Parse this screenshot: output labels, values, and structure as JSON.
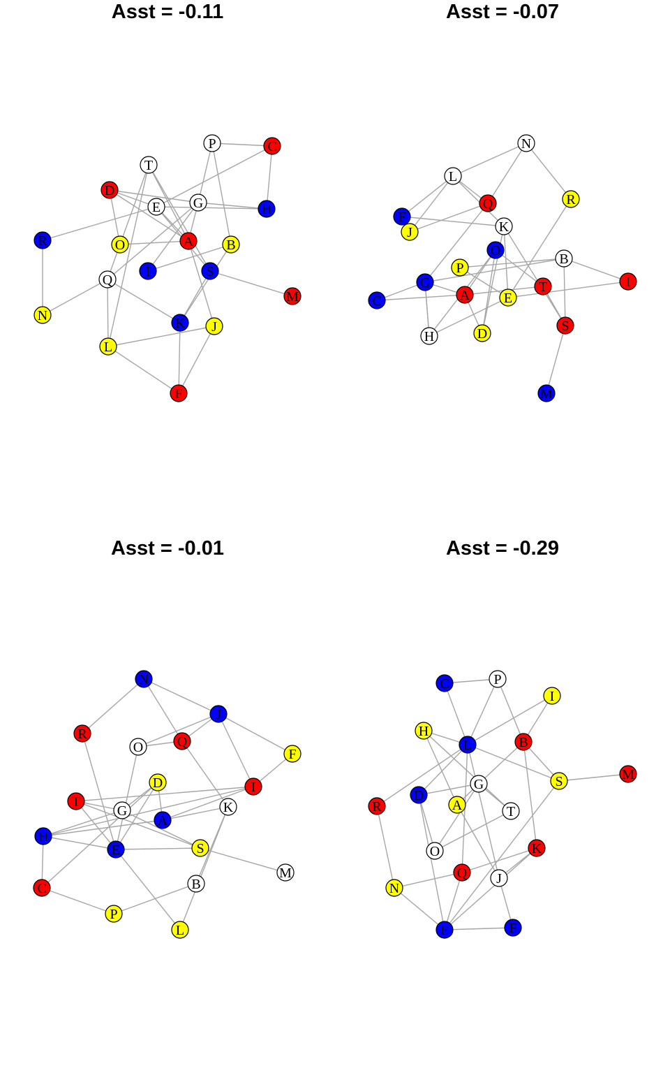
{
  "colors": {
    "red": "#ff0000",
    "blue": "#0000ff",
    "yellow": "#ffff00",
    "white": "#ffffff",
    "edge": "#a6a6a6"
  },
  "graphs": [
    {
      "title": "Asst = -0.11",
      "nodes": [
        {
          "id": "P",
          "color": "white"
        },
        {
          "id": "C",
          "color": "red"
        },
        {
          "id": "T",
          "color": "white"
        },
        {
          "id": "D",
          "color": "red"
        },
        {
          "id": "E",
          "color": "white"
        },
        {
          "id": "G",
          "color": "white"
        },
        {
          "id": "H",
          "color": "blue"
        },
        {
          "id": "R",
          "color": "blue"
        },
        {
          "id": "O",
          "color": "yellow"
        },
        {
          "id": "A",
          "color": "red"
        },
        {
          "id": "B",
          "color": "yellow"
        },
        {
          "id": "I",
          "color": "blue"
        },
        {
          "id": "S",
          "color": "blue"
        },
        {
          "id": "Q",
          "color": "white"
        },
        {
          "id": "M",
          "color": "red"
        },
        {
          "id": "N",
          "color": "yellow"
        },
        {
          "id": "K",
          "color": "blue"
        },
        {
          "id": "J",
          "color": "yellow"
        },
        {
          "id": "L",
          "color": "yellow"
        },
        {
          "id": "F",
          "color": "red"
        }
      ],
      "edges": [
        [
          "P",
          "C"
        ],
        [
          "C",
          "H"
        ],
        [
          "C",
          "E"
        ],
        [
          "P",
          "G"
        ],
        [
          "P",
          "B"
        ],
        [
          "T",
          "O"
        ],
        [
          "T",
          "A"
        ],
        [
          "T",
          "L"
        ],
        [
          "T",
          "S"
        ],
        [
          "D",
          "O"
        ],
        [
          "D",
          "E"
        ],
        [
          "D",
          "A"
        ],
        [
          "D",
          "G"
        ],
        [
          "E",
          "S"
        ],
        [
          "E",
          "R"
        ],
        [
          "E",
          "A"
        ],
        [
          "G",
          "H"
        ],
        [
          "G",
          "A"
        ],
        [
          "G",
          "Q"
        ],
        [
          "G",
          "I"
        ],
        [
          "E",
          "H"
        ],
        [
          "R",
          "N"
        ],
        [
          "O",
          "A"
        ],
        [
          "O",
          "Q"
        ],
        [
          "A",
          "J"
        ],
        [
          "B",
          "I"
        ],
        [
          "B",
          "K"
        ],
        [
          "S",
          "M"
        ],
        [
          "S",
          "K"
        ],
        [
          "Q",
          "N"
        ],
        [
          "Q",
          "L"
        ],
        [
          "Q",
          "K"
        ],
        [
          "L",
          "J"
        ],
        [
          "L",
          "F"
        ],
        [
          "K",
          "F"
        ],
        [
          "J",
          "F"
        ]
      ]
    },
    {
      "title": "Asst = -0.07",
      "nodes": [
        {
          "id": "N",
          "color": "white"
        },
        {
          "id": "L",
          "color": "white"
        },
        {
          "id": "Q",
          "color": "red"
        },
        {
          "id": "R",
          "color": "yellow"
        },
        {
          "id": "F",
          "color": "blue"
        },
        {
          "id": "J",
          "color": "yellow"
        },
        {
          "id": "K",
          "color": "white"
        },
        {
          "id": "O",
          "color": "blue"
        },
        {
          "id": "B",
          "color": "white"
        },
        {
          "id": "P",
          "color": "yellow"
        },
        {
          "id": "G",
          "color": "blue"
        },
        {
          "id": "I",
          "color": "red"
        },
        {
          "id": "C",
          "color": "blue"
        },
        {
          "id": "A",
          "color": "red"
        },
        {
          "id": "E",
          "color": "yellow"
        },
        {
          "id": "T",
          "color": "red"
        },
        {
          "id": "S",
          "color": "red"
        },
        {
          "id": "H",
          "color": "white"
        },
        {
          "id": "D",
          "color": "yellow"
        },
        {
          "id": "M",
          "color": "blue"
        }
      ],
      "edges": [
        [
          "N",
          "L"
        ],
        [
          "N",
          "Q"
        ],
        [
          "N",
          "R"
        ],
        [
          "L",
          "Q"
        ],
        [
          "L",
          "F"
        ],
        [
          "L",
          "J"
        ],
        [
          "L",
          "K"
        ],
        [
          "F",
          "K"
        ],
        [
          "J",
          "Q"
        ],
        [
          "Q",
          "G"
        ],
        [
          "K",
          "S"
        ],
        [
          "K",
          "D"
        ],
        [
          "K",
          "E"
        ],
        [
          "O",
          "A"
        ],
        [
          "O",
          "D"
        ],
        [
          "O",
          "T"
        ],
        [
          "R",
          "E"
        ],
        [
          "B",
          "G"
        ],
        [
          "B",
          "I"
        ],
        [
          "B",
          "S"
        ],
        [
          "B",
          "P"
        ],
        [
          "P",
          "E"
        ],
        [
          "G",
          "C"
        ],
        [
          "G",
          "A"
        ],
        [
          "G",
          "H"
        ],
        [
          "C",
          "A"
        ],
        [
          "A",
          "D"
        ],
        [
          "A",
          "T"
        ],
        [
          "E",
          "I"
        ],
        [
          "E",
          "H"
        ],
        [
          "T",
          "S"
        ],
        [
          "S",
          "M"
        ],
        [
          "H",
          "G"
        ],
        [
          "H",
          "O"
        ]
      ]
    },
    {
      "title": "Asst = -0.01",
      "nodes": [
        {
          "id": "N",
          "color": "blue"
        },
        {
          "id": "R",
          "color": "red"
        },
        {
          "id": "J",
          "color": "blue"
        },
        {
          "id": "O",
          "color": "white"
        },
        {
          "id": "Q",
          "color": "red"
        },
        {
          "id": "F",
          "color": "yellow"
        },
        {
          "id": "D",
          "color": "yellow"
        },
        {
          "id": "T",
          "color": "red"
        },
        {
          "id": "I",
          "color": "red"
        },
        {
          "id": "G",
          "color": "white"
        },
        {
          "id": "K",
          "color": "white"
        },
        {
          "id": "A",
          "color": "blue"
        },
        {
          "id": "H",
          "color": "blue"
        },
        {
          "id": "E",
          "color": "blue"
        },
        {
          "id": "S",
          "color": "yellow"
        },
        {
          "id": "M",
          "color": "white"
        },
        {
          "id": "C",
          "color": "red"
        },
        {
          "id": "B",
          "color": "white"
        },
        {
          "id": "P",
          "color": "yellow"
        },
        {
          "id": "L",
          "color": "yellow"
        }
      ],
      "edges": [
        [
          "N",
          "R"
        ],
        [
          "N",
          "J"
        ],
        [
          "N",
          "Q"
        ],
        [
          "J",
          "O"
        ],
        [
          "J",
          "F"
        ],
        [
          "J",
          "I"
        ],
        [
          "J",
          "Q"
        ],
        [
          "O",
          "Q"
        ],
        [
          "Q",
          "K"
        ],
        [
          "R",
          "E"
        ],
        [
          "O",
          "E"
        ],
        [
          "F",
          "I"
        ],
        [
          "I",
          "H"
        ],
        [
          "I",
          "A"
        ],
        [
          "I",
          "T"
        ],
        [
          "D",
          "G"
        ],
        [
          "D",
          "A"
        ],
        [
          "D",
          "C"
        ],
        [
          "T",
          "G"
        ],
        [
          "T",
          "E"
        ],
        [
          "T",
          "S"
        ],
        [
          "G",
          "S"
        ],
        [
          "G",
          "H"
        ],
        [
          "K",
          "A"
        ],
        [
          "K",
          "B"
        ],
        [
          "K",
          "L"
        ],
        [
          "A",
          "H"
        ],
        [
          "E",
          "H"
        ],
        [
          "E",
          "S"
        ],
        [
          "E",
          "L"
        ],
        [
          "E",
          "D"
        ],
        [
          "S",
          "M"
        ],
        [
          "H",
          "C"
        ],
        [
          "C",
          "P"
        ],
        [
          "P",
          "B"
        ]
      ]
    },
    {
      "title": "Asst = -0.29",
      "nodes": [
        {
          "id": "C",
          "color": "blue"
        },
        {
          "id": "P",
          "color": "white"
        },
        {
          "id": "I",
          "color": "yellow"
        },
        {
          "id": "H",
          "color": "yellow"
        },
        {
          "id": "L",
          "color": "blue"
        },
        {
          "id": "B",
          "color": "red"
        },
        {
          "id": "M",
          "color": "red"
        },
        {
          "id": "S",
          "color": "yellow"
        },
        {
          "id": "G",
          "color": "white"
        },
        {
          "id": "D",
          "color": "blue"
        },
        {
          "id": "A",
          "color": "yellow"
        },
        {
          "id": "R",
          "color": "red"
        },
        {
          "id": "T",
          "color": "white"
        },
        {
          "id": "O",
          "color": "white"
        },
        {
          "id": "K",
          "color": "red"
        },
        {
          "id": "Q",
          "color": "red"
        },
        {
          "id": "J",
          "color": "white"
        },
        {
          "id": "N",
          "color": "yellow"
        },
        {
          "id": "E",
          "color": "blue"
        },
        {
          "id": "F",
          "color": "blue"
        }
      ],
      "edges": [
        [
          "C",
          "P"
        ],
        [
          "C",
          "L"
        ],
        [
          "P",
          "L"
        ],
        [
          "P",
          "B"
        ],
        [
          "I",
          "B"
        ],
        [
          "I",
          "L"
        ],
        [
          "H",
          "L"
        ],
        [
          "H",
          "A"
        ],
        [
          "H",
          "T"
        ],
        [
          "L",
          "S"
        ],
        [
          "L",
          "D"
        ],
        [
          "L",
          "Q"
        ],
        [
          "L",
          "J"
        ],
        [
          "L",
          "R"
        ],
        [
          "B",
          "G"
        ],
        [
          "B",
          "K"
        ],
        [
          "B",
          "S"
        ],
        [
          "S",
          "M"
        ],
        [
          "S",
          "E"
        ],
        [
          "G",
          "A"
        ],
        [
          "G",
          "D"
        ],
        [
          "G",
          "T"
        ],
        [
          "G",
          "O"
        ],
        [
          "D",
          "O"
        ],
        [
          "D",
          "E"
        ],
        [
          "A",
          "J"
        ],
        [
          "R",
          "N"
        ],
        [
          "T",
          "O"
        ],
        [
          "K",
          "Q"
        ],
        [
          "K",
          "E"
        ],
        [
          "K",
          "J"
        ],
        [
          "Q",
          "N"
        ],
        [
          "Q",
          "E"
        ],
        [
          "J",
          "F"
        ],
        [
          "N",
          "E"
        ],
        [
          "E",
          "F"
        ]
      ]
    }
  ]
}
